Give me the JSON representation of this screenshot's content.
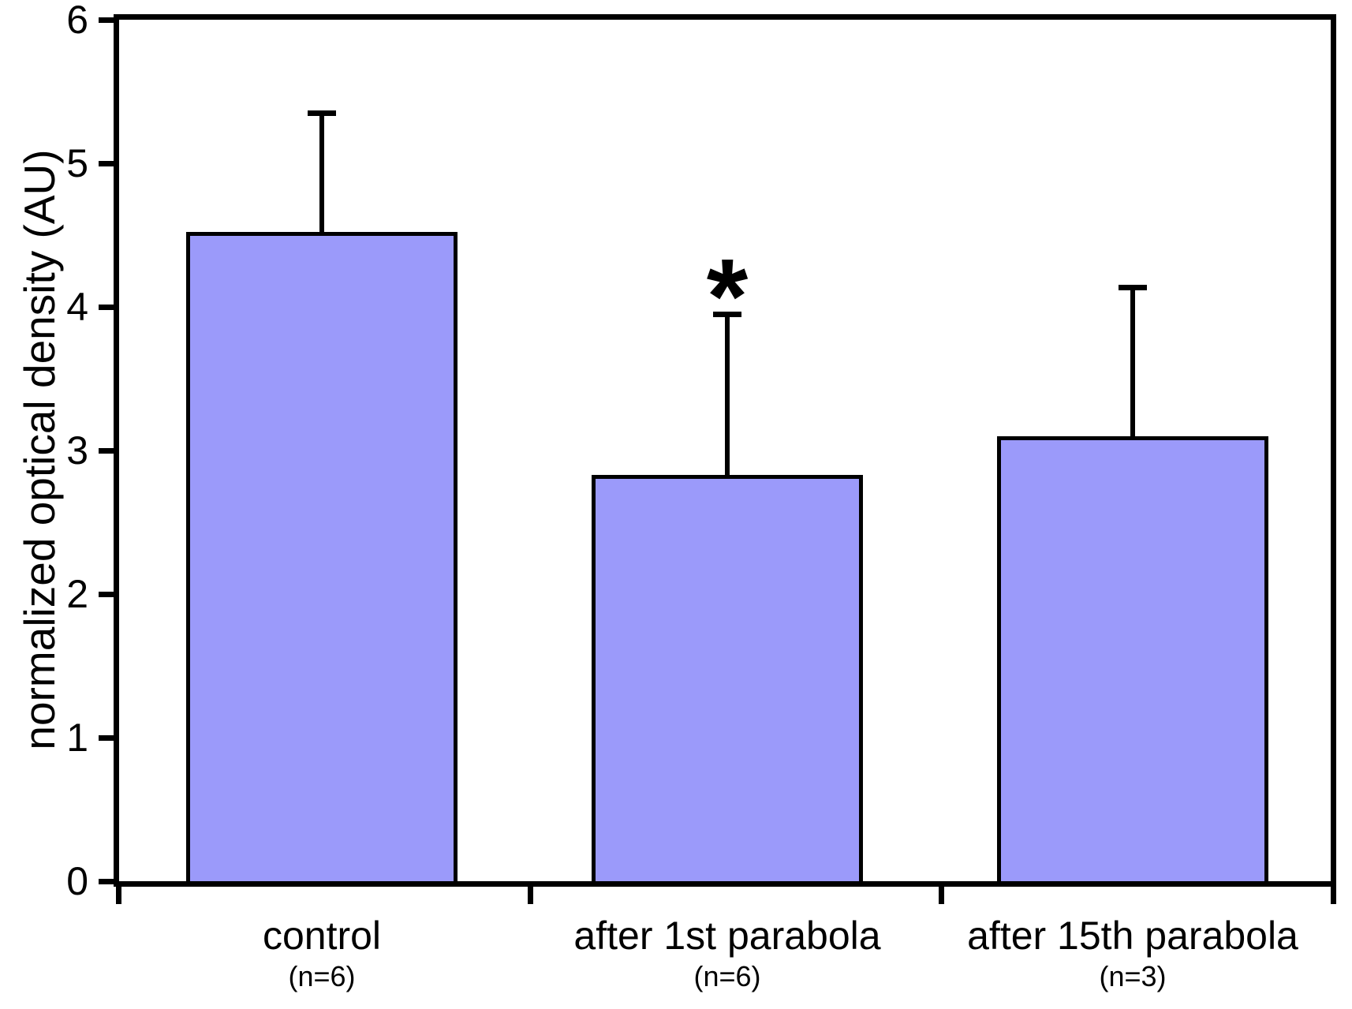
{
  "figure": {
    "background": "#ffffff",
    "text_color": "#000000"
  },
  "chart_data": {
    "type": "bar",
    "title": "",
    "xlabel": "",
    "ylabel": "normalized optical density (AU)",
    "ylim": [
      0,
      6
    ],
    "yticks": [
      0,
      1,
      2,
      3,
      4,
      5,
      6
    ],
    "grid": false,
    "legend": null,
    "bar_color": "#9b9afa",
    "bar_border_color": "#000000",
    "error_bar_color": "#000000",
    "categories": [
      "control",
      "after 1st parabola",
      "after 15th parabola"
    ],
    "bars": [
      {
        "label": "control",
        "n_label": "(n=6)",
        "value": 4.52,
        "error_top": 5.35,
        "significance": ""
      },
      {
        "label": "after 1st parabola",
        "n_label": "(n=6)",
        "value": 2.83,
        "error_top": 3.95,
        "significance": "*"
      },
      {
        "label": "after 15th parabola",
        "n_label": "(n=3)",
        "value": 3.1,
        "error_top": 4.14,
        "significance": ""
      }
    ]
  }
}
